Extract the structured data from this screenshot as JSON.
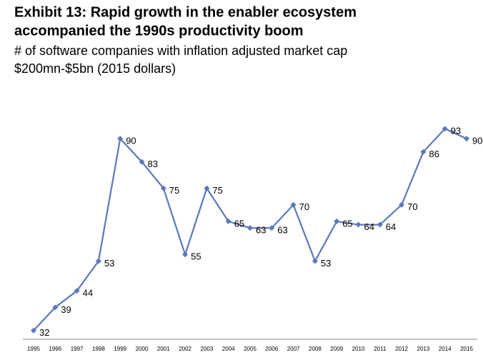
{
  "chart_data": {
    "type": "line",
    "title": [
      "Exhibit 13: Rapid growth in the enabler ecosystem",
      "accompanied the 1990s productivity boom"
    ],
    "subtitle": [
      "# of software companies with inflation adjusted market cap",
      "$200mn-$5bn (2015 dollars)"
    ],
    "categories": [
      "1995",
      "1996",
      "1997",
      "1998",
      "1999",
      "2000",
      "2001",
      "2002",
      "2003",
      "2004",
      "2005",
      "2006",
      "2007",
      "2008",
      "2009",
      "2010",
      "2011",
      "2012",
      "2013",
      "2014",
      "2015"
    ],
    "series": [
      {
        "name": "Software companies",
        "color": "#5b78b8",
        "values": [
          32,
          39,
          44,
          53,
          90,
          83,
          75,
          55,
          75,
          65,
          63,
          63,
          70,
          53,
          65,
          64,
          64,
          70,
          86,
          93,
          90
        ]
      }
    ],
    "ylim": [
      30,
      95
    ]
  }
}
